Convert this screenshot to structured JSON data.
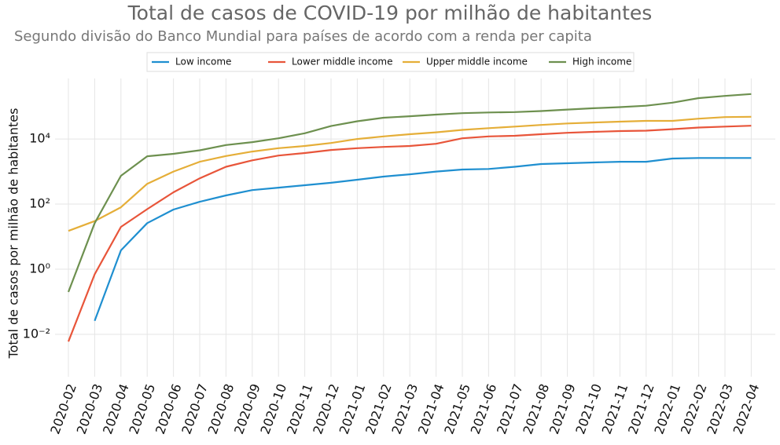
{
  "chart_data": {
    "type": "line",
    "title": "Total de casos de COVID-19 por milhão de habitantes",
    "subtitle": "Segundo divisão do Banco Mundial para países de acordo com a renda per capita",
    "y_label": "Total de casos por milhão de habitantes",
    "log_y": true,
    "grid": true,
    "legend": "top",
    "x": [
      "2020-02",
      "2020-03",
      "2020-04",
      "2020-05",
      "2020-06",
      "2020-07",
      "2020-08",
      "2020-09",
      "2020-10",
      "2020-11",
      "2020-12",
      "2021-01",
      "2021-02",
      "2021-03",
      "2021-04",
      "2021-05",
      "2021-06",
      "2021-07",
      "2021-08",
      "2021-09",
      "2021-10",
      "2021-11",
      "2021-12",
      "2022-01",
      "2022-02",
      "2022-03",
      "2022-04"
    ],
    "ylim": [
      0.0005,
      720000
    ],
    "yticks": [
      {
        "value": 0.01,
        "label": "10⁻²"
      },
      {
        "value": 1,
        "label": "10⁰"
      },
      {
        "value": 100,
        "label": "10²"
      },
      {
        "value": 10000,
        "label": "10⁴"
      }
    ],
    "series": [
      {
        "name": "Low income",
        "color": "#1f8fd0",
        "values": [
          null,
          0.026,
          3.8,
          26,
          68,
          118,
          185,
          270,
          320,
          380,
          450,
          560,
          700,
          820,
          1000,
          1150,
          1200,
          1400,
          1700,
          1800,
          1900,
          2000,
          2000,
          2500,
          2600,
          2600,
          2600
        ]
      },
      {
        "name": "Lower middle income",
        "color": "#e8553a",
        "values": [
          0.006,
          0.7,
          20,
          70,
          230,
          620,
          1400,
          2200,
          3100,
          3700,
          4600,
          5200,
          5700,
          6100,
          7100,
          10500,
          12000,
          12500,
          14000,
          15500,
          16500,
          17500,
          18000,
          20000,
          22500,
          24000,
          25500
        ]
      },
      {
        "name": "Upper middle income",
        "color": "#e5ae38",
        "values": [
          15,
          30,
          80,
          420,
          1000,
          2000,
          3000,
          4100,
          5200,
          6100,
          7500,
          10000,
          12000,
          14000,
          16000,
          19000,
          21500,
          24000,
          27000,
          30000,
          32000,
          34000,
          36000,
          36000,
          42000,
          47000,
          48000
        ]
      },
      {
        "name": "High income",
        "color": "#6d904f",
        "values": [
          0.2,
          26,
          740,
          2950,
          3500,
          4500,
          6500,
          8000,
          10500,
          15000,
          25000,
          35000,
          45000,
          50000,
          56000,
          62000,
          65000,
          67000,
          72000,
          80000,
          88000,
          95000,
          105000,
          130000,
          180000,
          210000,
          240000
        ]
      }
    ]
  }
}
